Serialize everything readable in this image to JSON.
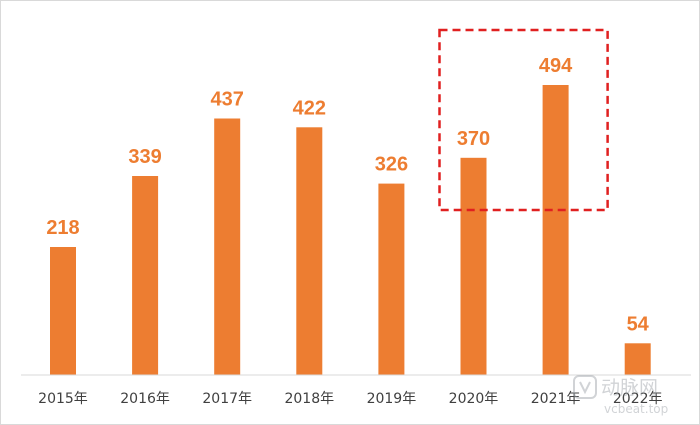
{
  "chart_data": {
    "type": "bar",
    "categories": [
      "2015年",
      "2016年",
      "2017年",
      "2018年",
      "2019年",
      "2020年",
      "2021年",
      "2022年"
    ],
    "values": [
      218,
      339,
      437,
      422,
      326,
      370,
      494,
      54
    ],
    "data_labels": [
      "218",
      "339",
      "437",
      "422",
      "326",
      "370",
      "494",
      "54"
    ],
    "title": "",
    "xlabel": "",
    "ylabel": "",
    "ylim": [
      0,
      520
    ],
    "grid": false,
    "legend": "none",
    "highlight": {
      "categories": [
        "2020年",
        "2021年"
      ],
      "style": "dashed-box",
      "color": "#e02020"
    },
    "colors": {
      "bar": "#ed7d31",
      "label": "#ed7d31",
      "axis": "#d9d9d9"
    }
  },
  "watermark": {
    "brand": "动脉网",
    "site": "vcbeat.top"
  }
}
